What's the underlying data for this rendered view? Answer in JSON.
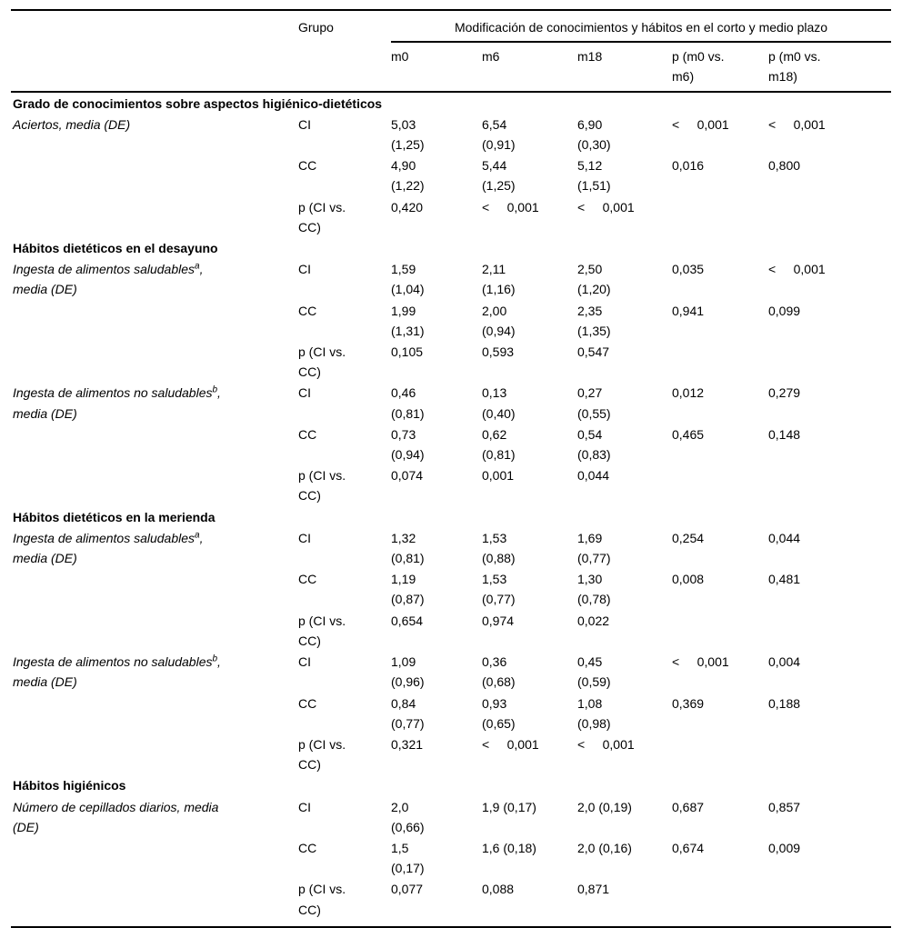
{
  "page": {
    "background_color": "#ffffff",
    "text_color": "#000000"
  },
  "table": {
    "header": {
      "grupo": "Grupo",
      "span": "Modificación de conocimientos y hábitos en el corto y medio plazo",
      "cols": [
        "m0",
        "m6",
        "m18",
        "p (m0 vs.\nm6)",
        "p (m0 vs.\nm18)"
      ]
    },
    "rows": [
      {
        "type": "section",
        "label": "Grado de conocimientos sobre aspectos higiénico-dietéticos"
      },
      {
        "type": "data",
        "label": {
          "pre": "Aciertos, media (DE)",
          "sup": "",
          "post": ""
        },
        "grupo": "CI",
        "cells": [
          "5,03\n(1,25)",
          "6,54\n(0,91)",
          "6,90\n(0,30)",
          "<     0,001",
          "<     0,001"
        ]
      },
      {
        "type": "data",
        "label": null,
        "grupo": "CC",
        "cells": [
          "4,90\n(1,22)",
          "5,44\n(1,25)",
          "5,12\n(1,51)",
          "0,016",
          "0,800"
        ]
      },
      {
        "type": "data",
        "label": null,
        "grupo": "p (CI vs.\nCC)",
        "cells": [
          "0,420",
          "<     0,001",
          "<     0,001",
          "",
          ""
        ]
      },
      {
        "type": "section",
        "label": "Hábitos dietéticos en el desayuno"
      },
      {
        "type": "data",
        "label": {
          "pre": "Ingesta de alimentos saludables",
          "sup": "a",
          "post": ",\nmedia (DE)"
        },
        "grupo": "CI",
        "cells": [
          "1,59\n(1,04)",
          "2,11\n(1,16)",
          "2,50\n(1,20)",
          "0,035",
          "<     0,001"
        ]
      },
      {
        "type": "data",
        "label": null,
        "grupo": "CC",
        "cells": [
          "1,99\n(1,31)",
          "2,00\n(0,94)",
          "2,35\n(1,35)",
          "0,941",
          "0,099"
        ]
      },
      {
        "type": "data",
        "label": null,
        "grupo": "p (CI vs.\nCC)",
        "cells": [
          "0,105",
          "0,593",
          "0,547",
          "",
          ""
        ]
      },
      {
        "type": "data",
        "label": {
          "pre": "Ingesta de alimentos no saludables",
          "sup": "b",
          "post": ",\nmedia (DE)"
        },
        "grupo": "CI",
        "cells": [
          "0,46\n(0,81)",
          "0,13\n(0,40)",
          "0,27\n(0,55)",
          "0,012",
          "0,279"
        ]
      },
      {
        "type": "data",
        "label": null,
        "grupo": "CC",
        "cells": [
          "0,73\n(0,94)",
          "0,62\n(0,81)",
          "0,54\n(0,83)",
          "0,465",
          "0,148"
        ]
      },
      {
        "type": "data",
        "label": null,
        "grupo": "p (CI vs.\nCC)",
        "cells": [
          "0,074",
          "0,001",
          "0,044",
          "",
          ""
        ]
      },
      {
        "type": "section",
        "label": "Hábitos dietéticos en la merienda"
      },
      {
        "type": "data",
        "label": {
          "pre": "Ingesta de alimentos saludables",
          "sup": "a",
          "post": ",\nmedia (DE)"
        },
        "grupo": "CI",
        "cells": [
          "1,32\n(0,81)",
          "1,53\n(0,88)",
          "1,69\n(0,77)",
          "0,254",
          "0,044"
        ]
      },
      {
        "type": "data",
        "label": null,
        "grupo": "CC",
        "cells": [
          "1,19\n(0,87)",
          "1,53\n(0,77)",
          "1,30\n(0,78)",
          "0,008",
          "0,481"
        ]
      },
      {
        "type": "data",
        "label": null,
        "grupo": "p (CI vs.\nCC)",
        "cells": [
          "0,654",
          "0,974",
          "0,022",
          "",
          ""
        ]
      },
      {
        "type": "data",
        "label": {
          "pre": "Ingesta de alimentos no saludables",
          "sup": "b",
          "post": ",\nmedia (DE)"
        },
        "grupo": "CI",
        "cells": [
          "1,09\n(0,96)",
          "0,36\n(0,68)",
          "0,45\n(0,59)",
          "<     0,001",
          "0,004"
        ]
      },
      {
        "type": "data",
        "label": null,
        "grupo": "CC",
        "cells": [
          "0,84\n(0,77)",
          "0,93\n(0,65)",
          "1,08\n(0,98)",
          "0,369",
          "0,188"
        ]
      },
      {
        "type": "data",
        "label": null,
        "grupo": "p (CI vs.\nCC)",
        "cells": [
          "0,321",
          "<     0,001",
          "<     0,001",
          "",
          ""
        ]
      },
      {
        "type": "section",
        "label": "Hábitos higiénicos"
      },
      {
        "type": "data",
        "label": {
          "pre": "Número de cepillados diarios, media",
          "sup": "",
          "post": "\n(DE)"
        },
        "grupo": "CI",
        "cells": [
          "2,0\n(0,66)",
          "1,9 (0,17)",
          "2,0 (0,19)",
          "0,687",
          "0,857"
        ]
      },
      {
        "type": "data",
        "label": null,
        "grupo": "CC",
        "cells": [
          "1,5\n(0,17)",
          "1,6 (0,18)",
          "2,0 (0,16)",
          "0,674",
          "0,009"
        ]
      },
      {
        "type": "data",
        "label": null,
        "grupo": "p (CI vs.\nCC)",
        "cells": [
          "0,077",
          "0,088",
          "0,871",
          "",
          ""
        ]
      }
    ]
  }
}
